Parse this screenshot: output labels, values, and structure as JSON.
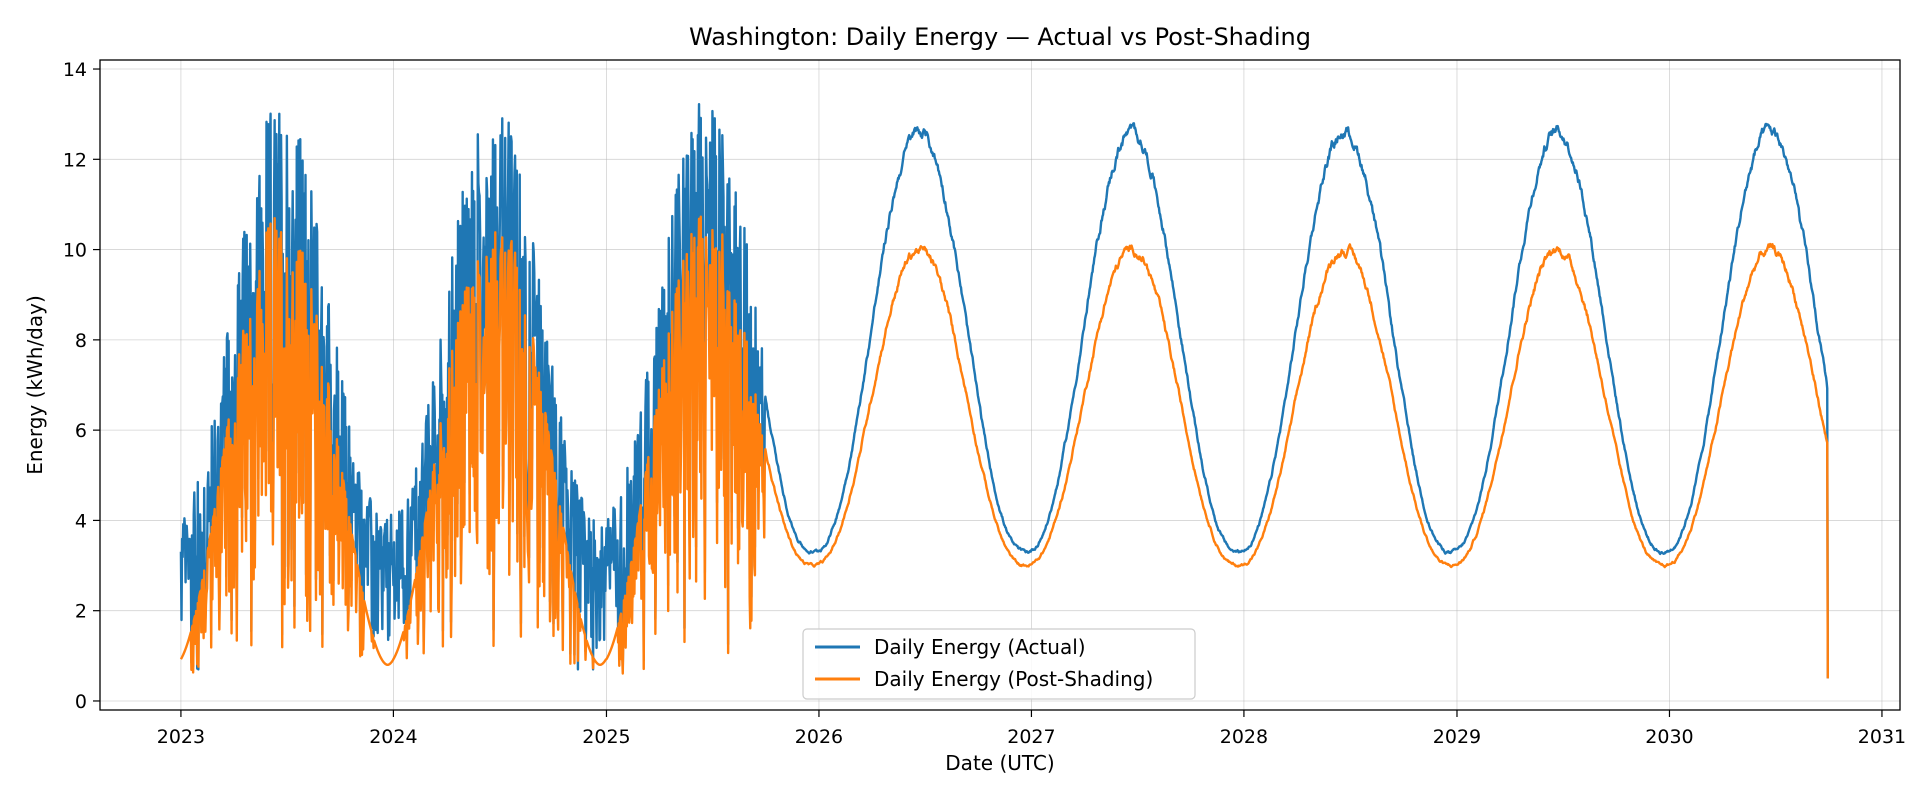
{
  "chart_data": {
    "type": "line",
    "title": "Washington: Daily Energy — Actual vs Post-Shading",
    "xlabel": "Date (UTC)",
    "ylabel": "Energy (kWh/day)",
    "x_ticks": [
      "2023",
      "2024",
      "2025",
      "2026",
      "2027",
      "2028",
      "2029",
      "2030",
      "2031"
    ],
    "y_ticks": [
      "0",
      "2",
      "4",
      "6",
      "8",
      "10",
      "12",
      "14"
    ],
    "xlim": [
      "2022-08-15",
      "2031-02-01"
    ],
    "ylim": [
      -0.2,
      14.2
    ],
    "grid": true,
    "legend_position": "bottom-center",
    "date_range": [
      "2023-01-01",
      "2030-09-30"
    ],
    "series": [
      {
        "name": "Daily Energy (Actual)",
        "color": "#1f77b4",
        "seasonal_min": 3.3,
        "seasonal_max": 12.6,
        "min_day_of_year": 355,
        "noisy_until": "2025-09-30",
        "final_value": 0.5
      },
      {
        "name": "Daily Energy (Post-Shading)",
        "color": "#ff7f0e",
        "seasonal_min": 3.0,
        "seasonal_max": 10.0,
        "min_day_of_year": 355,
        "noisy_until": "2025-09-30",
        "final_value": 0.5
      }
    ]
  }
}
